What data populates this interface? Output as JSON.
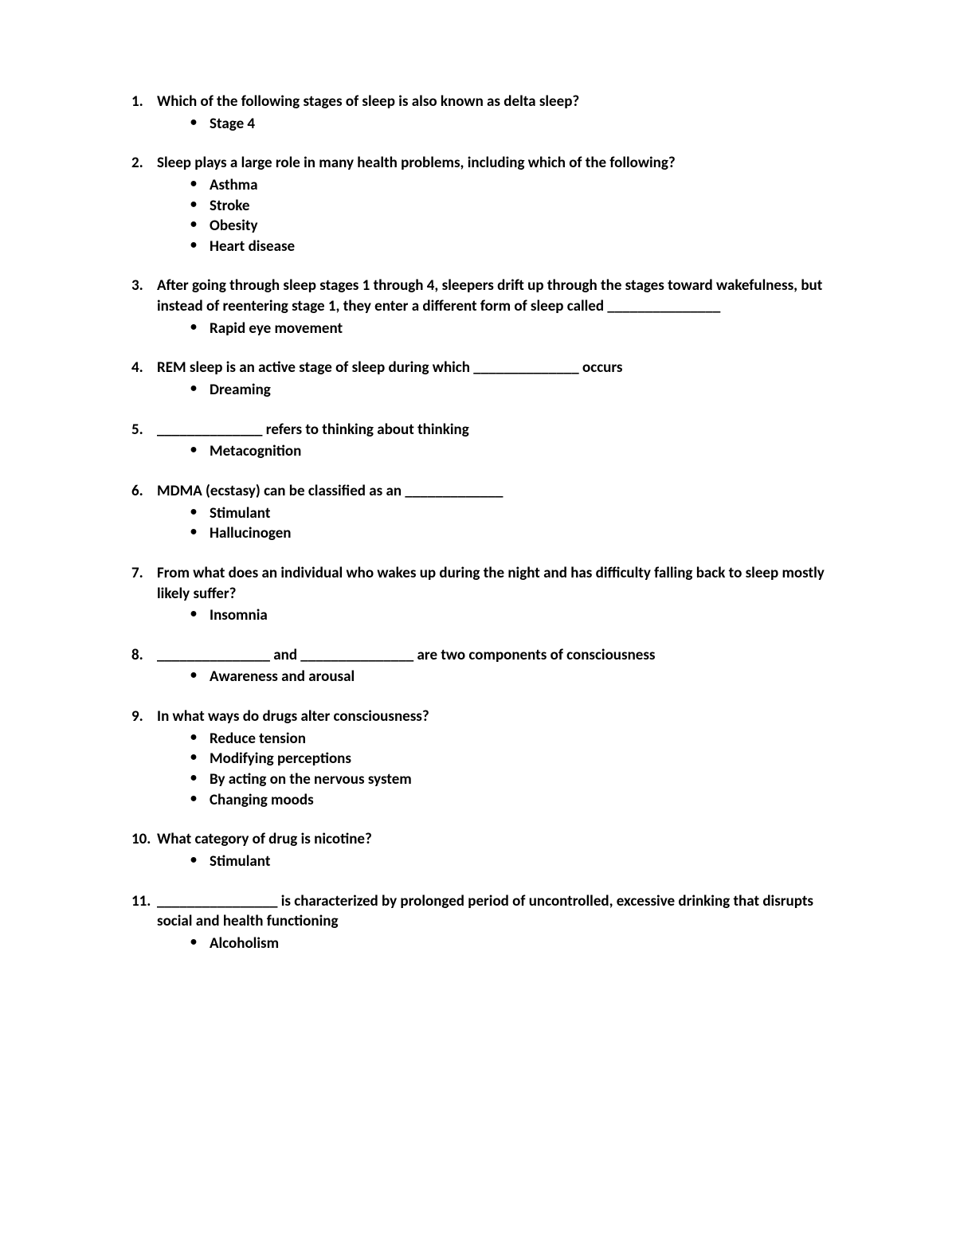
{
  "questions": [
    {
      "number": "1.",
      "text": "Which of the following stages of sleep is also known as delta sleep?",
      "answers": [
        "Stage 4"
      ]
    },
    {
      "number": "2.",
      "text": "Sleep plays a large role in many health problems, including which of the following?",
      "answers": [
        "Asthma",
        "Stroke",
        "Obesity",
        "Heart disease"
      ]
    },
    {
      "number": "3.",
      "text": "After going through sleep stages 1 through 4, sleepers drift up through the stages toward wakefulness, but instead of reentering stage 1, they enter a different form of sleep called _______________",
      "answers": [
        "Rapid eye movement"
      ]
    },
    {
      "number": "4.",
      "text": "REM sleep is an active stage of sleep during which ______________ occurs",
      "answers": [
        "Dreaming"
      ]
    },
    {
      "number": "5.",
      "text": "______________ refers to thinking about thinking",
      "answers": [
        "Metacognition"
      ]
    },
    {
      "number": "6.",
      "text": "MDMA (ecstasy) can be classified as an _____________",
      "answers": [
        "Stimulant",
        "Hallucinogen"
      ]
    },
    {
      "number": "7.",
      "text": "From what does an individual who wakes up during the night and has difficulty falling back to sleep mostly likely suffer?",
      "answers": [
        "Insomnia"
      ]
    },
    {
      "number": "8.",
      "text": "_______________ and _______________ are two components of consciousness",
      "answers": [
        "Awareness and arousal"
      ]
    },
    {
      "number": "9.",
      "text": "In what ways do drugs alter consciousness?",
      "answers": [
        "Reduce tension",
        "Modifying perceptions",
        "By acting on the nervous system",
        "Changing moods"
      ]
    },
    {
      "number": "10.",
      "text": "What category of drug is nicotine?",
      "answers": [
        "Stimulant"
      ]
    },
    {
      "number": "11.",
      "text": "________________ is characterized by prolonged period of uncontrolled, excessive drinking that disrupts social and health functioning",
      "answers": [
        "Alcoholism"
      ]
    }
  ],
  "styling": {
    "background_color": "#ffffff",
    "text_color": "#000000",
    "font_family": "Calibri",
    "font_size": 19,
    "font_weight": 600,
    "line_height": 1.35,
    "bullet_char": "•"
  }
}
